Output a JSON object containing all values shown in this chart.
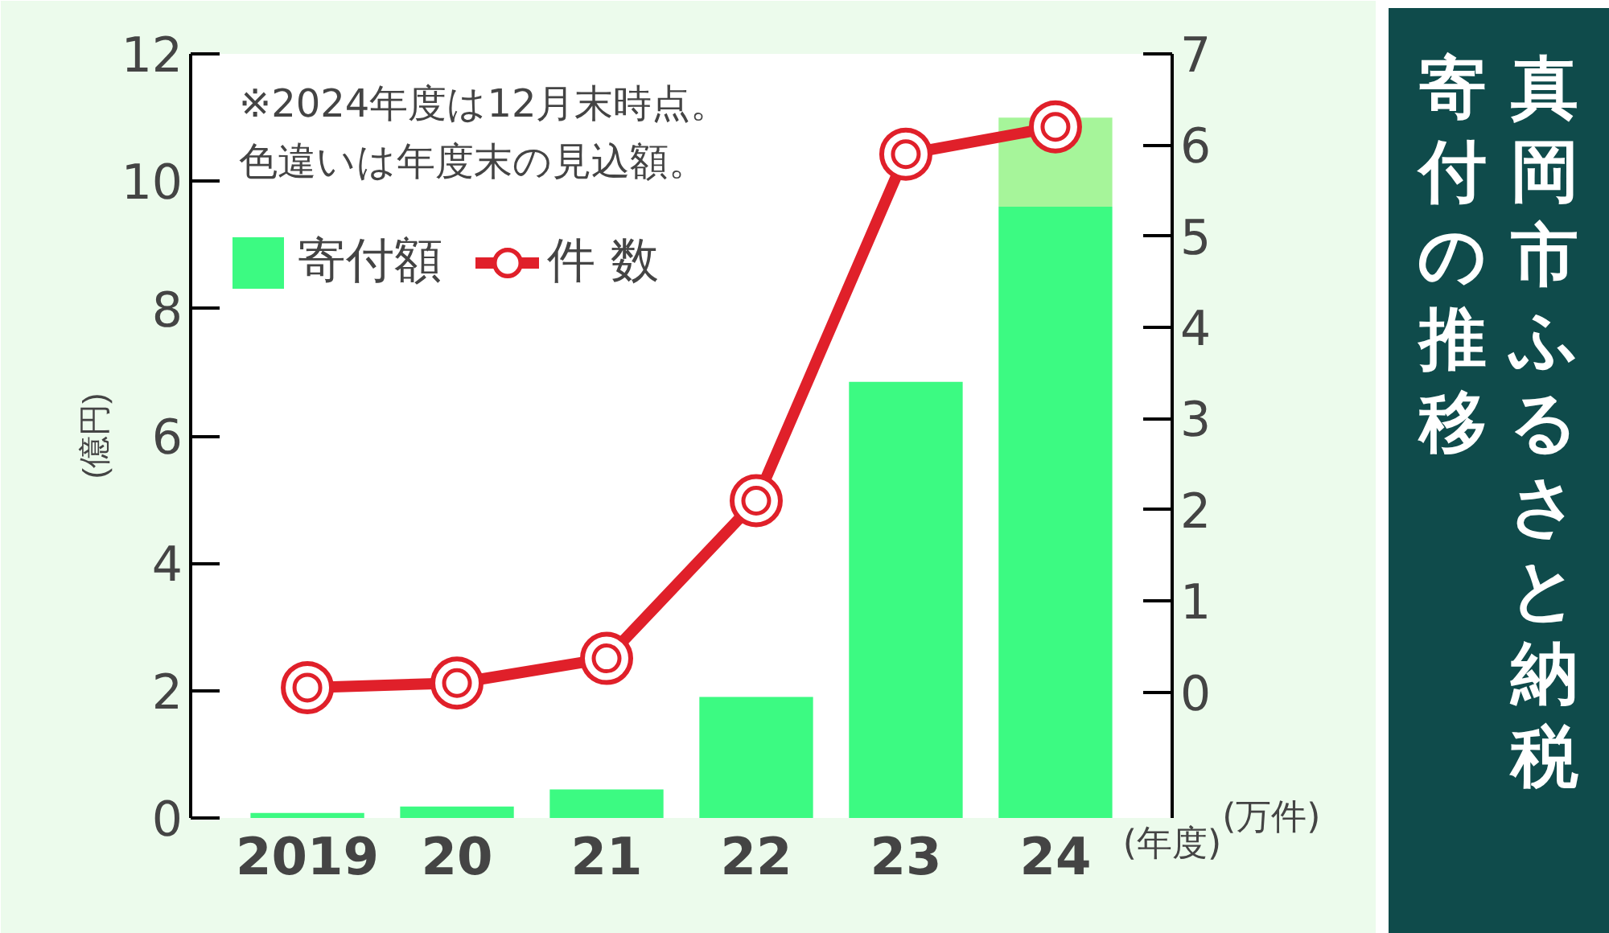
{
  "chart_data": {
    "type": "bar",
    "title": "真岡市ふるさと納税寄付の推移",
    "categories": [
      "2019",
      "20",
      "21",
      "22",
      "23",
      "24"
    ],
    "xlabel": "(年度)",
    "ylabel": "(億円)",
    "y2label": "(万件)",
    "annotations": [
      "※2024年度は12月末時点。",
      "色違いは年度末の見込額。"
    ],
    "stacked": true,
    "series": [
      {
        "name": "寄付額",
        "color": "#3cfa82",
        "values": [
          0.08,
          0.18,
          0.45,
          1.9,
          6.85,
          9.6
        ]
      },
      {
        "color": "#a6f59a",
        "values": [
          null,
          null,
          null,
          null,
          null,
          1.4
        ]
      },
      {
        "name": "件 数",
        "type": "line",
        "axis": "y2",
        "marker": "circle",
        "color": "#e0202a",
        "values": [
          0.05,
          0.1,
          0.37,
          2.1,
          5.9,
          6.2
        ]
      }
    ],
    "ylim": [
      0,
      12
    ],
    "yticks": [
      0,
      2,
      4,
      6,
      8,
      10,
      12
    ],
    "y2lim": [
      -1.38,
      7
    ],
    "y2ticks": [
      0,
      1,
      2,
      3,
      4,
      5,
      6,
      7
    ],
    "grid": false,
    "legend": "top left"
  }
}
